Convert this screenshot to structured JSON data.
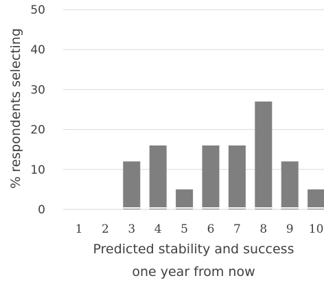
{
  "chart_data": {
    "type": "bar",
    "categories": [
      "1",
      "2",
      "3",
      "4",
      "5",
      "6",
      "7",
      "8",
      "9",
      "10"
    ],
    "values": [
      0,
      0,
      12,
      16,
      5,
      16,
      16,
      27,
      12,
      5
    ],
    "xlabel_lines": [
      "Predicted stability and success",
      "one year from now"
    ],
    "ylabel": "% respondents selecting",
    "ylim": [
      0,
      50
    ],
    "yticks": [
      "0",
      "10",
      "20",
      "30",
      "40",
      "50"
    ],
    "grid": true,
    "bar_color": "#7f7f7f"
  }
}
